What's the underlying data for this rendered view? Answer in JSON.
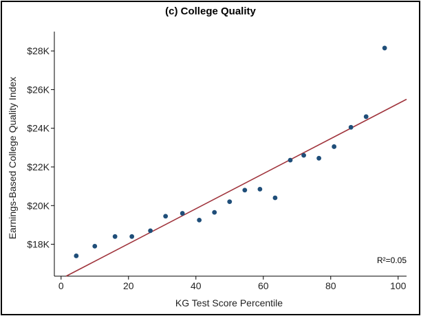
{
  "chart_data": {
    "type": "scatter",
    "title": "(c) College Quality",
    "xlabel": "KG Test Score Percentile",
    "ylabel": "Earnings-Based College Quality Index",
    "xlim": [
      -2,
      102.5
    ],
    "ylim": [
      16350,
      29000
    ],
    "xticks": [
      0,
      20,
      40,
      60,
      80,
      100
    ],
    "xtick_labels": [
      "0",
      "20",
      "40",
      "60",
      "80",
      "100"
    ],
    "yticks": [
      18000,
      20000,
      22000,
      24000,
      26000,
      28000
    ],
    "ytick_labels": [
      "$18K",
      "$20K",
      "$22K",
      "$24K",
      "$26K",
      "$28K"
    ],
    "grid": false,
    "annotation": "R²=0.05",
    "marker_color": "#1f4e79",
    "fit_line_color": "#a0343c",
    "points": [
      {
        "x": 4.5,
        "y": 17400
      },
      {
        "x": 10.0,
        "y": 17900
      },
      {
        "x": 16.0,
        "y": 18400
      },
      {
        "x": 21.0,
        "y": 18400
      },
      {
        "x": 26.5,
        "y": 18700
      },
      {
        "x": 31.0,
        "y": 19450
      },
      {
        "x": 36.0,
        "y": 19600
      },
      {
        "x": 41.0,
        "y": 19250
      },
      {
        "x": 45.5,
        "y": 19650
      },
      {
        "x": 50.0,
        "y": 20200
      },
      {
        "x": 54.5,
        "y": 20800
      },
      {
        "x": 59.0,
        "y": 20850
      },
      {
        "x": 63.5,
        "y": 20400
      },
      {
        "x": 68.0,
        "y": 22350
      },
      {
        "x": 72.0,
        "y": 22600
      },
      {
        "x": 76.5,
        "y": 22450
      },
      {
        "x": 81.0,
        "y": 23050
      },
      {
        "x": 86.0,
        "y": 24050
      },
      {
        "x": 90.5,
        "y": 24600
      },
      {
        "x": 96.0,
        "y": 28150
      }
    ],
    "fit_line": {
      "x": [
        1.5,
        102.5
      ],
      "y": [
        16350,
        25500
      ]
    }
  }
}
